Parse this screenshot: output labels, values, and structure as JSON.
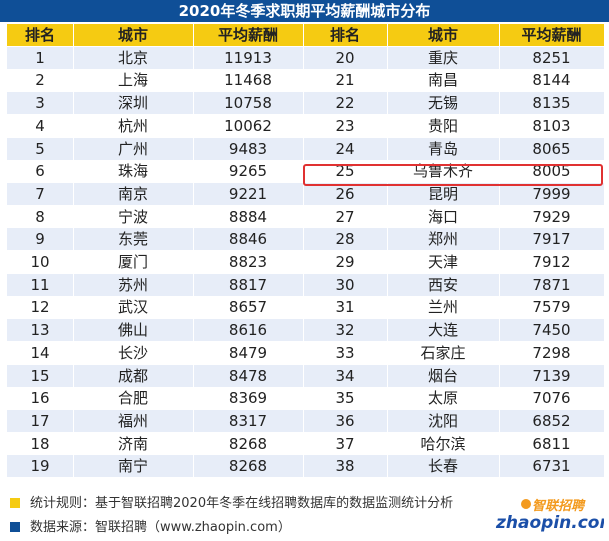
{
  "title": "2020年冬季求职期平均薪酬城市分布",
  "chart_data": {
    "type": "table",
    "title": "2020年冬季求职期平均薪酬城市分布",
    "columns": [
      "排名",
      "城市",
      "平均薪酬",
      "排名",
      "城市",
      "平均薪酬"
    ],
    "rows": [
      [
        {
          "rank": "1",
          "city": "北京",
          "salary": "11913"
        },
        {
          "rank": "20",
          "city": "重庆",
          "salary": "8251"
        }
      ],
      [
        {
          "rank": "2",
          "city": "上海",
          "salary": "11468"
        },
        {
          "rank": "21",
          "city": "南昌",
          "salary": "8144"
        }
      ],
      [
        {
          "rank": "3",
          "city": "深圳",
          "salary": "10758"
        },
        {
          "rank": "22",
          "city": "无锡",
          "salary": "8135"
        }
      ],
      [
        {
          "rank": "4",
          "city": "杭州",
          "salary": "10062"
        },
        {
          "rank": "23",
          "city": "贵阳",
          "salary": "8103"
        }
      ],
      [
        {
          "rank": "5",
          "city": "广州",
          "salary": "9483"
        },
        {
          "rank": "24",
          "city": "青岛",
          "salary": "8065"
        }
      ],
      [
        {
          "rank": "6",
          "city": "珠海",
          "salary": "9265"
        },
        {
          "rank": "25",
          "city": "乌鲁木齐",
          "salary": "8005"
        }
      ],
      [
        {
          "rank": "7",
          "city": "南京",
          "salary": "9221"
        },
        {
          "rank": "26",
          "city": "昆明",
          "salary": "7999"
        }
      ],
      [
        {
          "rank": "8",
          "city": "宁波",
          "salary": "8884"
        },
        {
          "rank": "27",
          "city": "海口",
          "salary": "7929"
        }
      ],
      [
        {
          "rank": "9",
          "city": "东莞",
          "salary": "8846"
        },
        {
          "rank": "28",
          "city": "郑州",
          "salary": "7917"
        }
      ],
      [
        {
          "rank": "10",
          "city": "厦门",
          "salary": "8823"
        },
        {
          "rank": "29",
          "city": "天津",
          "salary": "7912"
        }
      ],
      [
        {
          "rank": "11",
          "city": "苏州",
          "salary": "8817"
        },
        {
          "rank": "30",
          "city": "西安",
          "salary": "7871"
        }
      ],
      [
        {
          "rank": "12",
          "city": "武汉",
          "salary": "8657"
        },
        {
          "rank": "31",
          "city": "兰州",
          "salary": "7579"
        }
      ],
      [
        {
          "rank": "13",
          "city": "佛山",
          "salary": "8616"
        },
        {
          "rank": "32",
          "city": "大连",
          "salary": "7450"
        }
      ],
      [
        {
          "rank": "14",
          "city": "长沙",
          "salary": "8479"
        },
        {
          "rank": "33",
          "city": "石家庄",
          "salary": "7298"
        }
      ],
      [
        {
          "rank": "15",
          "city": "成都",
          "salary": "8478"
        },
        {
          "rank": "34",
          "city": "烟台",
          "salary": "7139"
        }
      ],
      [
        {
          "rank": "16",
          "city": "合肥",
          "salary": "8369"
        },
        {
          "rank": "35",
          "city": "太原",
          "salary": "7076"
        }
      ],
      [
        {
          "rank": "17",
          "city": "福州",
          "salary": "8317"
        },
        {
          "rank": "36",
          "city": "沈阳",
          "salary": "6852"
        }
      ],
      [
        {
          "rank": "18",
          "city": "济南",
          "salary": "8268"
        },
        {
          "rank": "37",
          "city": "哈尔滨",
          "salary": "6811"
        }
      ],
      [
        {
          "rank": "19",
          "city": "南宁",
          "salary": "8268"
        },
        {
          "rank": "38",
          "city": "长春",
          "salary": "6731"
        }
      ]
    ],
    "highlighted_rank": "25"
  },
  "colors": {
    "title_bg": "#0f4f97",
    "header_bg": "#f5cb12",
    "row_stripe": "#e7edf8",
    "highlight_border": "#e03131",
    "logo_blue": "#1b4fa8",
    "logo_orange": "#f39a1e"
  },
  "footer": {
    "note1": "统计规则：基于智联招聘2020年冬季在线招聘数据库的数据监测统计分析",
    "note2": "数据来源：智联招聘（www.zhaopin.com）"
  },
  "logo": {
    "cn": "智联招聘",
    "en": "zhaopin.com",
    "icon": "zhaopin-logo"
  }
}
